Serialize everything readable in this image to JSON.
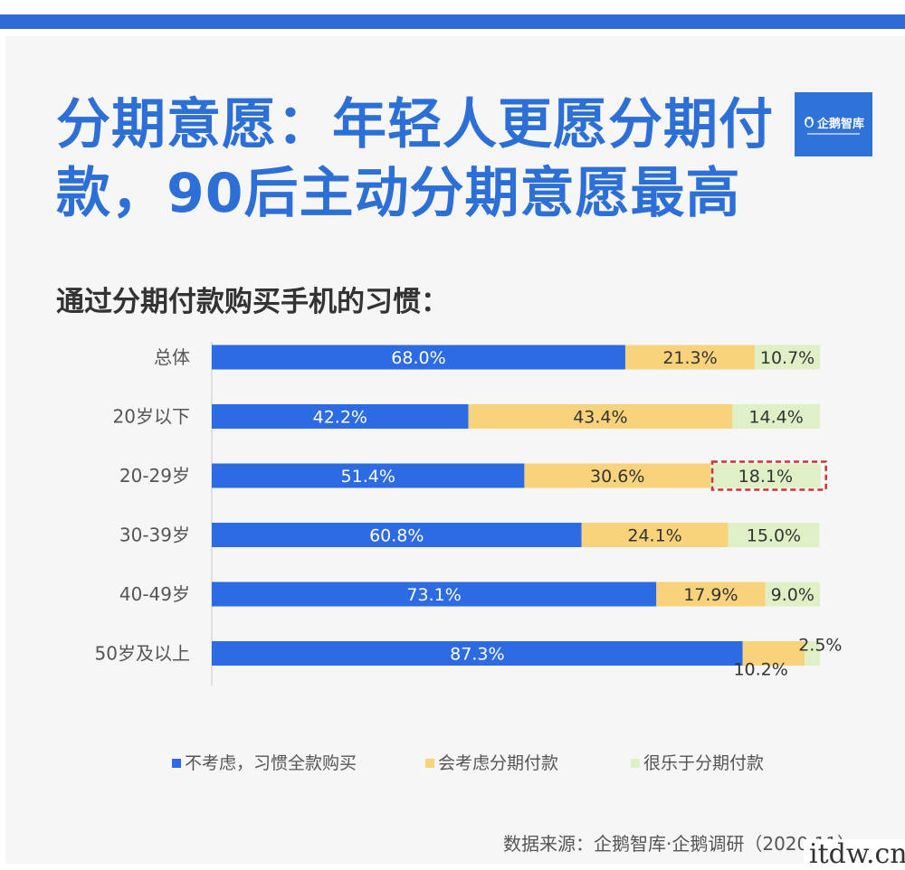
{
  "headline": {
    "line1": "分期意愿：年轻人更愿分期付",
    "line2": "款，90后主动分期意愿最高"
  },
  "logo": {
    "text": "企鹅智库",
    "icon": "penguin-logo-icon",
    "color": "#2f73d9"
  },
  "chart_title": "通过分期付款购买手机的习惯：",
  "source": "数据来源：企鹅智库·企鹅调研（2020.11）",
  "watermark": "itdw.cn",
  "colors": {
    "accent": "#2f6bd8",
    "headline": "#2c6fd6",
    "series_full": "#2d6be4",
    "series_consider": "#f8d37c",
    "series_happy": "#dff0c6",
    "highlight_dash": "#cc3333"
  },
  "chart_data": {
    "type": "bar",
    "orientation": "horizontal",
    "stacked": true,
    "percent_stacked": true,
    "categories": [
      "总体",
      "20岁以下",
      "20-29岁",
      "30-39岁",
      "40-49岁",
      "50岁及以上"
    ],
    "series": [
      {
        "name": "不考虑，习惯全款购买",
        "color": "#2d6be4",
        "values": [
          68.0,
          42.2,
          51.4,
          60.8,
          73.1,
          87.3
        ]
      },
      {
        "name": "会考虑分期付款",
        "color": "#f8d37c",
        "values": [
          21.3,
          43.4,
          30.6,
          24.1,
          17.9,
          10.2
        ]
      },
      {
        "name": "很乐于分期付款",
        "color": "#dff0c6",
        "values": [
          10.7,
          14.4,
          18.1,
          15.0,
          9.0,
          2.5
        ]
      }
    ],
    "labels": [
      [
        "68.0%",
        "21.3%",
        "10.7%"
      ],
      [
        "42.2%",
        "43.4%",
        "14.4%"
      ],
      [
        "51.4%",
        "30.6%",
        "18.1%"
      ],
      [
        "60.8%",
        "24.1%",
        "15.0%"
      ],
      [
        "73.1%",
        "17.9%",
        "9.0%"
      ],
      [
        "87.3%",
        "10.2%",
        "2.5%"
      ]
    ],
    "highlight": {
      "category": "20-29岁",
      "series": "很乐于分期付款"
    },
    "xlim": [
      0,
      100
    ],
    "grid": false,
    "legend_position": "bottom"
  }
}
